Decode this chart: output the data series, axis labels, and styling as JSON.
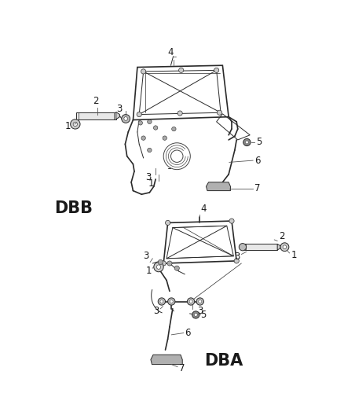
{
  "bg_color": "#ffffff",
  "line_color": "#2a2a2a",
  "label_color": "#1a1a1a",
  "thin_color": "#444444",
  "dbb_label": "DBB",
  "dba_label": "DBA",
  "dbb_fontsize": 15,
  "dba_fontsize": 15,
  "callout_fontsize": 8.5,
  "leader_color": "#555555",
  "figsize": [
    4.38,
    5.33
  ],
  "dpi": 100
}
